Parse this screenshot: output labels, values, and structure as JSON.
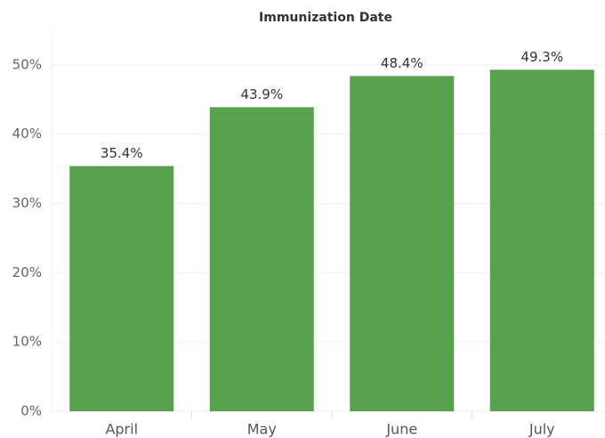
{
  "chart_data": {
    "type": "bar",
    "title": "Immunization Date",
    "categories": [
      "April",
      "May",
      "June",
      "July"
    ],
    "values": [
      35.4,
      43.9,
      48.4,
      49.3
    ],
    "value_labels": [
      "35.4%",
      "43.9%",
      "48.4%",
      "49.3%"
    ],
    "color": "#59a14f",
    "ylim": [
      0,
      55
    ],
    "yticks": [
      {
        "value": 0,
        "label": "0%"
      },
      {
        "value": 10,
        "label": "10%"
      },
      {
        "value": 20,
        "label": "20%"
      },
      {
        "value": 30,
        "label": "30%"
      },
      {
        "value": 40,
        "label": "40%"
      },
      {
        "value": 50,
        "label": "50%"
      }
    ],
    "grid": true
  }
}
